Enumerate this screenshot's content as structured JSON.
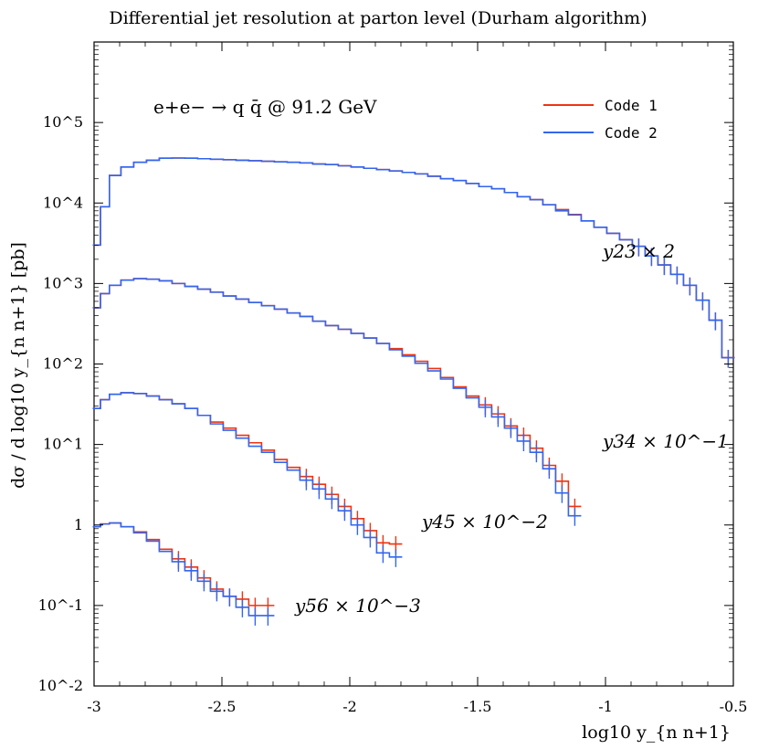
{
  "chart_data": {
    "type": "line",
    "title": "Differential jet resolution at parton level (Durham algorithm)",
    "xlabel": "log10 y_{n n+1}",
    "ylabel": "dσ / d log10 y_{n n+1} [pb]",
    "xlim": [
      -3,
      -0.5
    ],
    "ylim": [
      0.01,
      1000000
    ],
    "yscale": "log",
    "x_tick_labels": [
      "-3",
      "-2.5",
      "-2",
      "-1.5",
      "-1",
      "-0.5"
    ],
    "y_tick_labels": [
      "10^-2",
      "10^-1",
      "1",
      "10^1",
      "10^2",
      "10^3",
      "10^4",
      "10^5"
    ],
    "process_label": "e+e− → q q̄ @ 91.2 GeV",
    "legend": {
      "position": "top-right",
      "entries": [
        "Code 1",
        "Code 2"
      ]
    },
    "colors": {
      "code1": "#ee3311",
      "code2": "#3366ee"
    },
    "curve_labels": [
      {
        "text": "y23 × 2",
        "series": "y23"
      },
      {
        "text": "y34 × 10^−1",
        "series": "y34"
      },
      {
        "text": "y45 × 10^−2",
        "series": "y45"
      },
      {
        "text": "y56 × 10^−3",
        "series": "y56"
      }
    ],
    "series": [
      {
        "name": "Code 1",
        "curve": "y23",
        "x": [
          -2.99,
          -2.96,
          -2.92,
          -2.87,
          -2.82,
          -2.77,
          -2.72,
          -2.67,
          -2.62,
          -2.57,
          -2.52,
          -2.47,
          -2.42,
          -2.37,
          -2.32,
          -2.27,
          -2.22,
          -2.17,
          -2.12,
          -2.07,
          -2.02,
          -1.97,
          -1.92,
          -1.87,
          -1.82,
          -1.77,
          -1.72,
          -1.67,
          -1.62,
          -1.57,
          -1.52,
          -1.47,
          -1.42,
          -1.37,
          -1.32,
          -1.27,
          -1.22,
          -1.17,
          -1.12,
          -1.07,
          -1.02,
          -0.97,
          -0.92,
          -0.87,
          -0.82,
          -0.77,
          -0.72,
          -0.67,
          -0.62,
          -0.57,
          -0.52
        ],
        "y": [
          3000,
          9000,
          22000,
          28000,
          32000,
          34000,
          36000,
          36200,
          36000,
          35500,
          35000,
          34500,
          34000,
          33500,
          33000,
          32500,
          32000,
          31500,
          30500,
          30000,
          29000,
          28000,
          27000,
          26000,
          25000,
          24000,
          23000,
          21500,
          20000,
          19000,
          17500,
          16000,
          15000,
          13500,
          12000,
          11000,
          9500,
          8300,
          7200,
          6000,
          5000,
          4200,
          3500,
          2900,
          2200,
          1700,
          1300,
          950,
          620,
          350,
          120
        ]
      },
      {
        "name": "Code 2",
        "curve": "y23",
        "x": [
          -2.99,
          -2.96,
          -2.92,
          -2.87,
          -2.82,
          -2.77,
          -2.72,
          -2.67,
          -2.62,
          -2.57,
          -2.52,
          -2.47,
          -2.42,
          -2.37,
          -2.32,
          -2.27,
          -2.22,
          -2.17,
          -2.12,
          -2.07,
          -2.02,
          -1.97,
          -1.92,
          -1.87,
          -1.82,
          -1.77,
          -1.72,
          -1.67,
          -1.62,
          -1.57,
          -1.52,
          -1.47,
          -1.42,
          -1.37,
          -1.32,
          -1.27,
          -1.22,
          -1.17,
          -1.12,
          -1.07,
          -1.02,
          -0.97,
          -0.92,
          -0.87,
          -0.82,
          -0.77,
          -0.72,
          -0.67,
          -0.62,
          -0.57,
          -0.52
        ],
        "y": [
          3000,
          9000,
          22000,
          28000,
          32000,
          34000,
          36000,
          36200,
          36000,
          35500,
          35000,
          34500,
          34000,
          33500,
          33000,
          32500,
          32000,
          31500,
          30500,
          30000,
          29000,
          28000,
          27000,
          26000,
          25000,
          24000,
          23000,
          21500,
          20000,
          19000,
          17500,
          16000,
          15000,
          13500,
          12000,
          11000,
          9500,
          8000,
          7100,
          6000,
          5000,
          4200,
          3500,
          2900,
          2200,
          1700,
          1300,
          950,
          620,
          350,
          120
        ]
      },
      {
        "name": "Code 1",
        "curve": "y34",
        "x": [
          -2.99,
          -2.96,
          -2.92,
          -2.87,
          -2.82,
          -2.77,
          -2.72,
          -2.67,
          -2.62,
          -2.57,
          -2.52,
          -2.47,
          -2.42,
          -2.37,
          -2.32,
          -2.27,
          -2.22,
          -2.17,
          -2.12,
          -2.07,
          -2.02,
          -1.97,
          -1.92,
          -1.87,
          -1.82,
          -1.77,
          -1.72,
          -1.67,
          -1.62,
          -1.57,
          -1.52,
          -1.47,
          -1.42,
          -1.37,
          -1.32,
          -1.27,
          -1.22,
          -1.17,
          -1.12
        ],
        "y": [
          500,
          750,
          950,
          1100,
          1150,
          1130,
          1080,
          1000,
          920,
          850,
          780,
          700,
          640,
          580,
          530,
          480,
          430,
          390,
          340,
          300,
          270,
          240,
          210,
          180,
          155,
          130,
          108,
          88,
          68,
          52,
          40,
          31,
          24,
          17,
          13,
          9,
          5.5,
          3.5,
          1.7
        ]
      },
      {
        "name": "Code 2",
        "curve": "y34",
        "x": [
          -2.99,
          -2.96,
          -2.92,
          -2.87,
          -2.82,
          -2.77,
          -2.72,
          -2.67,
          -2.62,
          -2.57,
          -2.52,
          -2.47,
          -2.42,
          -2.37,
          -2.32,
          -2.27,
          -2.22,
          -2.17,
          -2.12,
          -2.07,
          -2.02,
          -1.97,
          -1.92,
          -1.87,
          -1.82,
          -1.77,
          -1.72,
          -1.67,
          -1.62,
          -1.57,
          -1.52,
          -1.47,
          -1.42,
          -1.37,
          -1.32,
          -1.27,
          -1.22,
          -1.17,
          -1.12
        ],
        "y": [
          500,
          750,
          950,
          1100,
          1150,
          1130,
          1080,
          1000,
          920,
          850,
          780,
          700,
          640,
          580,
          530,
          480,
          430,
          390,
          340,
          300,
          270,
          240,
          210,
          180,
          150,
          125,
          102,
          82,
          65,
          50,
          38,
          29,
          22,
          16,
          11,
          8,
          5,
          2.5,
          1.3
        ]
      },
      {
        "name": "Code 1",
        "curve": "y45",
        "x": [
          -2.99,
          -2.96,
          -2.92,
          -2.87,
          -2.82,
          -2.77,
          -2.72,
          -2.67,
          -2.62,
          -2.57,
          -2.52,
          -2.47,
          -2.42,
          -2.37,
          -2.32,
          -2.27,
          -2.22,
          -2.17,
          -2.12,
          -2.07,
          -2.02,
          -1.97,
          -1.92,
          -1.87,
          -1.82
        ],
        "y": [
          28,
          36,
          42,
          44,
          43,
          40,
          36,
          32,
          28,
          23,
          19,
          16,
          13,
          10.5,
          8.5,
          6.5,
          5.2,
          4,
          3.2,
          2.4,
          1.7,
          1.2,
          0.85,
          0.6,
          0.58
        ]
      },
      {
        "name": "Code 2",
        "curve": "y45",
        "x": [
          -2.99,
          -2.96,
          -2.92,
          -2.87,
          -2.82,
          -2.77,
          -2.72,
          -2.67,
          -2.62,
          -2.57,
          -2.52,
          -2.47,
          -2.42,
          -2.37,
          -2.32,
          -2.27,
          -2.22,
          -2.17,
          -2.12,
          -2.07,
          -2.02,
          -1.97,
          -1.92,
          -1.87,
          -1.82
        ],
        "y": [
          28,
          36,
          42,
          44,
          43,
          40,
          36,
          32,
          28,
          23,
          18,
          15,
          12,
          9.5,
          8,
          6,
          4.8,
          3.6,
          2.8,
          2.1,
          1.5,
          1,
          0.7,
          0.45,
          0.4
        ]
      },
      {
        "name": "Code 1",
        "curve": "y56",
        "x": [
          -2.99,
          -2.96,
          -2.92,
          -2.87,
          -2.82,
          -2.77,
          -2.72,
          -2.67,
          -2.62,
          -2.57,
          -2.52,
          -2.47,
          -2.42,
          -2.37,
          -2.32
        ],
        "y": [
          0.95,
          1.03,
          1.06,
          0.95,
          0.82,
          0.66,
          0.5,
          0.38,
          0.3,
          0.22,
          0.16,
          0.13,
          0.12,
          0.1,
          0.1
        ]
      },
      {
        "name": "Code 2",
        "curve": "y56",
        "x": [
          -2.99,
          -2.96,
          -2.92,
          -2.87,
          -2.82,
          -2.77,
          -2.72,
          -2.67,
          -2.62,
          -2.57,
          -2.52,
          -2.47,
          -2.42,
          -2.37,
          -2.32
        ],
        "y": [
          0.95,
          1.03,
          1.06,
          0.95,
          0.8,
          0.63,
          0.47,
          0.35,
          0.27,
          0.2,
          0.15,
          0.13,
          0.095,
          0.075,
          0.075
        ]
      }
    ]
  }
}
